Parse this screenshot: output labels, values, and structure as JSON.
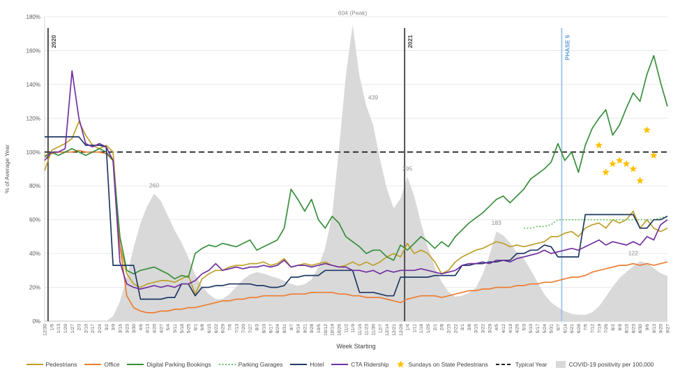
{
  "chart_data": {
    "type": "line",
    "title": "",
    "xlabel": "Week Starting",
    "ylabel": "% of Average Year",
    "ylim": [
      0,
      180
    ],
    "y_tick_step": 20,
    "grid": "horizontal",
    "legend_position": "bottom",
    "categories": [
      "12/30",
      "1/6",
      "1/13",
      "1/20",
      "1/27",
      "2/3",
      "2/10",
      "2/17",
      "2/24",
      "3/2",
      "3/9",
      "3/16",
      "3/23",
      "3/30",
      "4/6",
      "4/13",
      "4/20",
      "4/27",
      "5/4",
      "5/11",
      "5/18",
      "5/25",
      "6/1",
      "6/8",
      "6/15",
      "6/22",
      "6/29",
      "7/6",
      "7/13",
      "7/20",
      "7/27",
      "8/3",
      "8/10",
      "8/17",
      "8/24",
      "8/31",
      "9/7",
      "9/14",
      "9/21",
      "9/28",
      "10/5",
      "10/12",
      "10/19",
      "10/26",
      "11/2",
      "11/9",
      "11/16",
      "11/23",
      "11/30",
      "12/7",
      "12/14",
      "12/21",
      "12/28",
      "1/4",
      "1/11",
      "1/18",
      "1/25",
      "2/1",
      "2/8",
      "2/15",
      "2/22",
      "3/1",
      "3/8",
      "3/15",
      "3/22",
      "3/29",
      "4/5",
      "4/12",
      "4/19",
      "4/26",
      "5/3",
      "5/10",
      "5/17",
      "5/24",
      "5/31",
      "6/7",
      "6/14",
      "6/21",
      "6/28",
      "7/5",
      "7/12",
      "7/19",
      "7/26",
      "8/2",
      "8/9",
      "8/16",
      "8/23",
      "8/30",
      "9/6",
      "9/13",
      "9/20",
      "9/27"
    ],
    "series": [
      {
        "name": "Pedestrians",
        "color": "#BFA028",
        "style": "solid",
        "values": [
          89,
          101,
          103,
          105,
          108,
          118,
          110,
          104,
          102,
          104,
          100,
          45,
          28,
          22,
          20,
          22,
          23,
          24,
          24,
          23,
          25,
          27,
          16,
          25,
          28,
          30,
          30,
          32,
          33,
          33,
          34,
          34,
          35,
          33,
          34,
          37,
          32,
          33,
          34,
          33,
          34,
          35,
          33,
          32,
          33,
          35,
          33,
          35,
          33,
          35,
          38,
          40,
          38,
          46,
          40,
          42,
          40,
          35,
          28,
          30,
          35,
          38,
          40,
          42,
          43,
          45,
          47,
          46,
          44,
          45,
          44,
          45,
          46,
          47,
          50,
          50,
          52,
          53,
          50,
          55,
          57,
          58,
          55,
          60,
          58,
          60,
          65,
          55,
          60,
          55,
          53,
          55
        ]
      },
      {
        "name": "Office",
        "color": "#ED7D31",
        "style": "solid",
        "values": [
          98,
          99,
          100,
          100,
          100,
          101,
          100,
          100,
          100,
          99,
          95,
          45,
          15,
          8,
          6,
          5,
          5,
          6,
          6,
          7,
          7,
          8,
          8,
          9,
          10,
          11,
          12,
          12,
          13,
          13,
          14,
          14,
          15,
          15,
          15,
          15,
          16,
          16,
          16,
          17,
          17,
          17,
          17,
          16,
          16,
          15,
          15,
          14,
          14,
          14,
          13,
          12,
          11,
          13,
          14,
          15,
          15,
          15,
          14,
          15,
          16,
          17,
          18,
          18,
          19,
          19,
          20,
          20,
          20,
          21,
          21,
          22,
          22,
          23,
          23,
          24,
          25,
          26,
          26,
          27,
          29,
          30,
          31,
          32,
          33,
          33,
          34,
          33,
          34,
          33,
          34,
          35
        ]
      },
      {
        "name": "Digital Parking Bookings",
        "color": "#388E3C",
        "style": "solid",
        "values": [
          97,
          100,
          98,
          100,
          102,
          100,
          98,
          100,
          102,
          100,
          95,
          50,
          30,
          28,
          30,
          31,
          32,
          30,
          28,
          25,
          27,
          26,
          40,
          43,
          45,
          44,
          46,
          45,
          44,
          46,
          48,
          42,
          44,
          46,
          48,
          55,
          78,
          72,
          65,
          72,
          60,
          55,
          62,
          58,
          50,
          47,
          44,
          40,
          42,
          42,
          38,
          36,
          45,
          42,
          46,
          50,
          47,
          43,
          47,
          44,
          50,
          54,
          58,
          61,
          64,
          68,
          72,
          74,
          70,
          74,
          78,
          84,
          87,
          90,
          94,
          105,
          95,
          100,
          88,
          104,
          114,
          120,
          125,
          110,
          116,
          126,
          135,
          130,
          146,
          157,
          141,
          127
        ]
      },
      {
        "name": "Parking Garages",
        "color": "#62C462",
        "style": "dotted",
        "start_idx": 70,
        "values": [
          55,
          55,
          56,
          56,
          57,
          60,
          60,
          60,
          60,
          60,
          60,
          60,
          60,
          60,
          60,
          60,
          60,
          60,
          60,
          60,
          61,
          62
        ]
      },
      {
        "name": "Hotel",
        "color": "#1F3864",
        "style": "solid",
        "values": [
          109,
          109,
          109,
          109,
          109,
          109,
          104,
          104,
          104,
          103,
          33,
          33,
          33,
          33,
          13,
          13,
          13,
          13,
          14,
          14,
          22,
          22,
          15,
          20,
          20,
          21,
          21,
          22,
          22,
          22,
          22,
          21,
          21,
          20,
          20,
          21,
          26,
          26,
          27,
          27,
          27,
          30,
          30,
          30,
          30,
          30,
          17,
          17,
          17,
          16,
          15,
          15,
          26,
          26,
          26,
          26,
          26,
          27,
          27,
          27,
          27,
          33,
          33,
          34,
          34,
          35,
          35,
          36,
          36,
          40,
          40,
          42,
          42,
          45,
          44,
          38,
          38,
          38,
          38,
          63,
          63,
          63,
          63,
          63,
          63,
          63,
          63,
          55,
          55,
          60,
          60,
          62
        ]
      },
      {
        "name": "CTA Ridership",
        "color": "#7030A0",
        "style": "solid",
        "values": [
          95,
          100,
          100,
          102,
          148,
          120,
          105,
          103,
          105,
          103,
          95,
          35,
          22,
          20,
          19,
          20,
          21,
          20,
          21,
          20,
          22,
          22,
          24,
          28,
          30,
          34,
          30,
          31,
          32,
          31,
          32,
          32,
          33,
          32,
          33,
          36,
          32,
          33,
          33,
          32,
          33,
          34,
          33,
          32,
          32,
          30,
          30,
          29,
          30,
          28,
          30,
          29,
          30,
          30,
          30,
          31,
          30,
          29,
          28,
          29,
          30,
          33,
          34,
          34,
          35,
          34,
          36,
          36,
          35,
          37,
          38,
          39,
          40,
          42,
          40,
          41,
          42,
          43,
          42,
          44,
          46,
          48,
          45,
          47,
          46,
          45,
          47,
          45,
          50,
          48,
          57,
          60
        ]
      }
    ],
    "stars": {
      "name": "Sundays on State Pedestrians",
      "color": "#FFC000",
      "points": [
        {
          "idx": 81,
          "value": 104
        },
        {
          "idx": 82,
          "value": 88
        },
        {
          "idx": 83,
          "value": 93
        },
        {
          "idx": 84,
          "value": 95
        },
        {
          "idx": 85,
          "value": 93
        },
        {
          "idx": 86,
          "value": 90
        },
        {
          "idx": 87,
          "value": 83
        },
        {
          "idx": 88,
          "value": 113
        },
        {
          "idx": 89,
          "value": 98
        }
      ]
    },
    "typical_year": {
      "name": "Typical Year",
      "value": 100,
      "color": "#1A1A1A",
      "style": "dashed"
    },
    "covid_area": {
      "name": "COVID-19 positivity per 100,000",
      "color": "#D9D9D9",
      "scale_pct_per_unit": 0.29,
      "values": [
        0,
        0,
        0,
        0,
        0,
        0,
        0,
        0,
        0,
        0,
        10,
        40,
        90,
        150,
        200,
        235,
        260,
        245,
        215,
        185,
        160,
        130,
        95,
        70,
        55,
        45,
        45,
        55,
        70,
        85,
        95,
        100,
        97,
        92,
        88,
        82,
        76,
        72,
        75,
        85,
        110,
        150,
        215,
        350,
        500,
        604,
        500,
        439,
        400,
        330,
        270,
        230,
        250,
        295,
        255,
        200,
        150,
        110,
        80,
        60,
        50,
        52,
        58,
        68,
        95,
        135,
        183,
        175,
        160,
        140,
        128,
        105,
        80,
        55,
        38,
        28,
        20,
        15,
        13,
        13,
        18,
        30,
        50,
        70,
        88,
        100,
        112,
        122,
        118,
        108,
        98,
        92
      ]
    },
    "annotations": [
      {
        "text": "604 (Peak)",
        "idx": 45,
        "y_pct": 181
      },
      {
        "text": "439",
        "idx": 48,
        "y_pct": 131
      },
      {
        "text": "260",
        "idx": 16,
        "y_pct": 79
      },
      {
        "text": "295",
        "idx": 53,
        "y_pct": 89
      },
      {
        "text": "183",
        "idx": 66,
        "y_pct": 57
      },
      {
        "text": "122",
        "idx": 86,
        "y_pct": 39
      }
    ],
    "vlines": [
      {
        "label": "2020",
        "idx": 0.5,
        "color": "#404040",
        "label_color": "#404040"
      },
      {
        "label": "2021",
        "idx": 52.6,
        "color": "#404040",
        "label_color": "#404040"
      },
      {
        "label": "PHASE 5",
        "idx": 75.55,
        "color": "#9DC3E6",
        "label_color": "#5B9BD5"
      }
    ]
  },
  "legend": {
    "items": [
      {
        "label": "Pedestrians",
        "swatch": "line",
        "color": "#BFA028"
      },
      {
        "label": "Office",
        "swatch": "line",
        "color": "#ED7D31"
      },
      {
        "label": "Digital Parking Bookings",
        "swatch": "line",
        "color": "#388E3C"
      },
      {
        "label": "Parking Garages",
        "swatch": "dotted",
        "color": "#62C462"
      },
      {
        "label": "Hotel",
        "swatch": "line",
        "color": "#1F3864"
      },
      {
        "label": "CTA Ridership",
        "swatch": "line",
        "color": "#7030A0"
      },
      {
        "label": "Sundays on State Pedestrians",
        "swatch": "star",
        "color": "#FFC000"
      },
      {
        "label": "Typical Year",
        "swatch": "dashed",
        "color": "#1A1A1A"
      },
      {
        "label": "COVID-19 positivity per 100,000",
        "swatch": "box",
        "color": "#D9D9D9"
      }
    ]
  }
}
